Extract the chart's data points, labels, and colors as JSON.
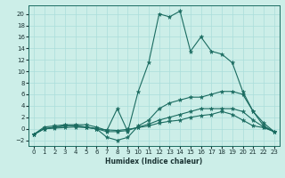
{
  "xlabel": "Humidex (Indice chaleur)",
  "ylabel": "",
  "xlim": [
    -0.5,
    23.5
  ],
  "ylim": [
    -3,
    21.5
  ],
  "xticks": [
    0,
    1,
    2,
    3,
    4,
    5,
    6,
    7,
    8,
    9,
    10,
    11,
    12,
    13,
    14,
    15,
    16,
    17,
    18,
    19,
    20,
    21,
    22,
    23
  ],
  "yticks": [
    -2,
    0,
    2,
    4,
    6,
    8,
    10,
    12,
    14,
    16,
    18,
    20
  ],
  "bg_color": "#cceee8",
  "grid_color": "#aaddda",
  "line_color": "#1a6b60",
  "line1_x": [
    0,
    1,
    2,
    3,
    4,
    5,
    6,
    7,
    8,
    9,
    10,
    11,
    12,
    13,
    14,
    15,
    16,
    17,
    18,
    19,
    20,
    21,
    22,
    23
  ],
  "line1_y": [
    -1.0,
    0.3,
    0.5,
    0.7,
    0.7,
    0.7,
    0.3,
    -0.3,
    3.5,
    -0.5,
    6.5,
    11.5,
    20.0,
    19.5,
    20.5,
    13.5,
    16.0,
    13.5,
    13.0,
    11.5,
    6.5,
    3.0,
    1.0,
    -0.5
  ],
  "line2_x": [
    0,
    1,
    2,
    3,
    4,
    5,
    6,
    7,
    8,
    9,
    10,
    11,
    12,
    13,
    14,
    15,
    16,
    17,
    18,
    19,
    20,
    21,
    22,
    23
  ],
  "line2_y": [
    -1.0,
    0.0,
    0.3,
    0.5,
    0.5,
    0.3,
    0.0,
    -1.5,
    -2.0,
    -1.5,
    0.5,
    1.5,
    3.5,
    4.5,
    5.0,
    5.5,
    5.5,
    6.0,
    6.5,
    6.5,
    6.0,
    3.0,
    0.5,
    -0.5
  ],
  "line3_x": [
    0,
    1,
    2,
    3,
    4,
    5,
    6,
    7,
    8,
    9,
    10,
    11,
    12,
    13,
    14,
    15,
    16,
    17,
    18,
    19,
    20,
    21,
    22,
    23
  ],
  "line3_y": [
    -1.0,
    0.0,
    0.2,
    0.5,
    0.5,
    0.3,
    0.0,
    -0.5,
    -0.5,
    -0.3,
    0.3,
    0.8,
    1.5,
    2.0,
    2.5,
    3.0,
    3.5,
    3.5,
    3.5,
    3.5,
    3.0,
    1.5,
    0.3,
    -0.5
  ],
  "line4_x": [
    0,
    1,
    2,
    3,
    4,
    5,
    6,
    7,
    8,
    9,
    10,
    11,
    12,
    13,
    14,
    15,
    16,
    17,
    18,
    19,
    20,
    21,
    22,
    23
  ],
  "line4_y": [
    -1.0,
    0.0,
    0.1,
    0.2,
    0.3,
    0.2,
    0.0,
    -0.2,
    -0.3,
    -0.1,
    0.2,
    0.5,
    1.0,
    1.3,
    1.5,
    2.0,
    2.3,
    2.5,
    3.0,
    2.5,
    1.5,
    0.5,
    0.2,
    -0.5
  ]
}
